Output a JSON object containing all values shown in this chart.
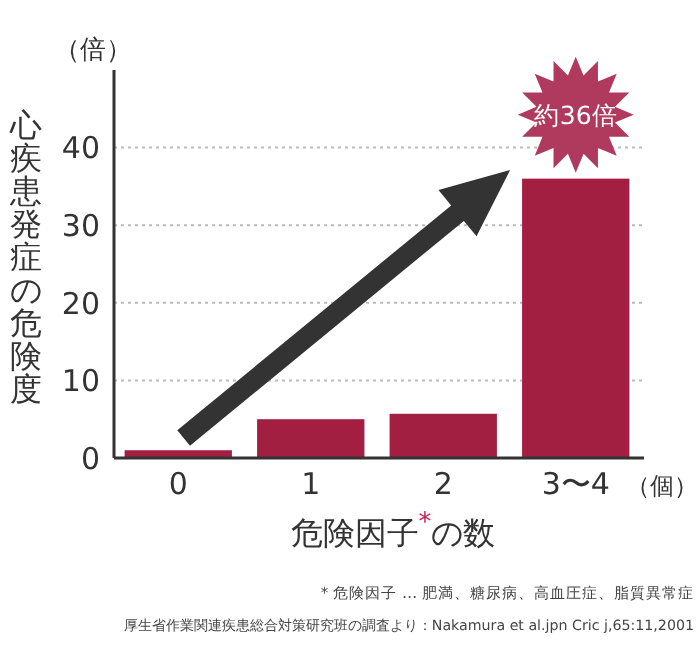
{
  "chart_data": {
    "type": "bar",
    "ylabel": "心疾患発症の危険度",
    "xlabel": "危険因子$^{*}$の数",
    "categories": [
      "0",
      "1",
      "2",
      "3〜4"
    ],
    "values": [
      1,
      5,
      5.7,
      36
    ],
    "color": "#a31f42",
    "ylim": [
      0,
      50
    ],
    "yticks": [
      0,
      10,
      20,
      30,
      40
    ],
    "grid": "y",
    "annotations": [
      "（倍）",
      "（個）",
      {
        "text": "約36倍",
        "x": "3〜4",
        "y": 36
      },
      "* 危険因子 … 肥満、糖尿病、高血圧症、脂質異常症",
      "厚生省作業関連疾患総合対策研究班の調査より：Nakamura et al.jpn Cric j,65:11,2001"
    ]
  }
}
